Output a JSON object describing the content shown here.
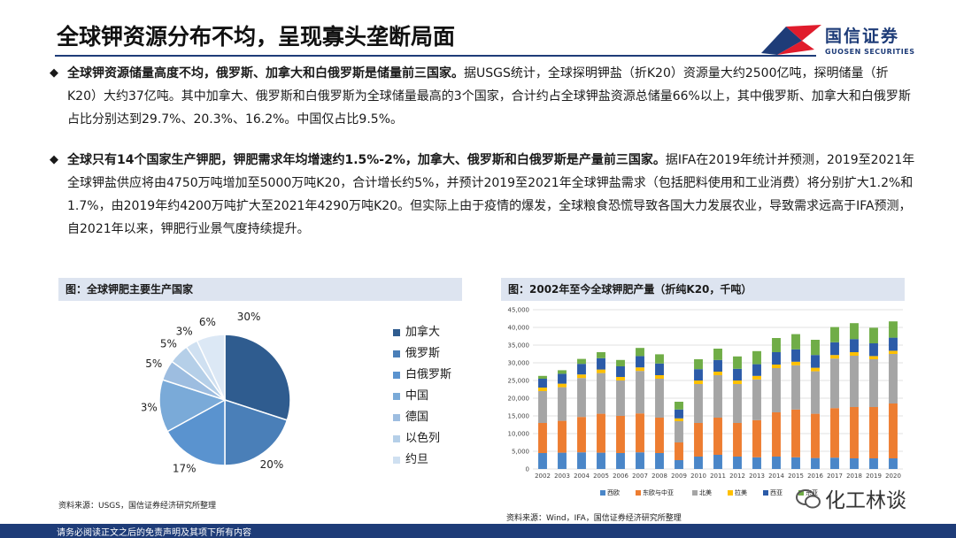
{
  "header": {
    "title": "全球钾资源分布不均，呈现寡头垄断局面",
    "logo_cn": "国信证券",
    "logo_en": "GUOSEN SECURITIES"
  },
  "paragraphs": [
    {
      "bullet": "◆",
      "bold": "全球钾资源储量高度不均，俄罗斯、加拿大和白俄罗斯是储量前三国家。",
      "rest": "据USGS统计，全球探明钾盐（折K20）资源量大约2500亿吨，探明储量（折K20）大约37亿吨。其中加拿大、俄罗斯和白俄罗斯为全球储量最高的3个国家，合计约占全球钾盐资源总储量66%以上，其中俄罗斯、加拿大和白俄罗斯占比分别达到29.7%、20.3%、16.2%。中国仅占比9.5%。"
    },
    {
      "bullet": "◆",
      "bold": "全球只有14个国家生产钾肥，钾肥需求年均增速约1.5%-2%，加拿大、俄罗斯和白俄罗斯是产量前三国家。",
      "rest": "据IFA在2019年统计并预测，2019至2021年全球钾盐供应将由4750万吨增加至5000万吨K20，合计增长约5%，并预计2019至2021年全球钾盐需求（包括肥料使用和工业消费）将分别扩大1.2%和1.7%，由2019年约4200万吨扩大至2021年4290万吨K20。但实际上由于疫情的爆发，全球粮食恐慌导致各国大力发展农业，导致需求远高于IFA预测，自2021年以来，钾肥行业景气度持续提升。"
    }
  ],
  "pie_caption": "图：全球钾肥主要生产国家",
  "bar_caption": "图：2002年至今全球钾肥产量（折纯K20，千吨）",
  "pie_source": "资料来源：USGS，国信证券经济研究所整理",
  "bar_source": "资料来源：Wind，IFA，国信证券经济研究所整理",
  "footer": "请务必阅读正文之后的免责声明及其项下所有内容",
  "watermark": "化工林谈",
  "chart_data": [
    {
      "type": "pie",
      "title": "图：全球钾肥主要生产国家",
      "labels": [
        "加拿大",
        "俄罗斯",
        "白俄罗斯",
        "中国",
        "德国",
        "以色列",
        "约旦"
      ],
      "values": [
        30,
        20,
        17,
        13,
        5,
        5,
        3
      ],
      "value_labels": [
        "30%",
        "20%",
        "17%",
        "13%",
        "5%",
        "5%",
        "3%"
      ],
      "other_label": "6%",
      "colors": [
        "#2f5c8f",
        "#4a7fb8",
        "#5a93cf",
        "#7aaad8",
        "#9dbde0",
        "#b5cfe8",
        "#cfe0f1"
      ],
      "legend_position": "right"
    },
    {
      "type": "bar",
      "stacked": true,
      "title": "图：2002年至今全球钾肥产量（折纯K20，千吨）",
      "categories": [
        "2002",
        "2003",
        "2004",
        "2005",
        "2006",
        "2007",
        "2008",
        "2009",
        "2010",
        "2011",
        "2012",
        "2013",
        "2014",
        "2015",
        "2016",
        "2017",
        "2018",
        "2019",
        "2020"
      ],
      "series": [
        {
          "name": "西欧",
          "color": "#4a86c8",
          "values": [
            4500,
            4600,
            4700,
            4600,
            4500,
            4700,
            4500,
            2500,
            3500,
            4000,
            3500,
            3300,
            3500,
            3300,
            3100,
            3200,
            3000,
            3000,
            3000
          ]
        },
        {
          "name": "东欧与中亚",
          "color": "#ed7d31",
          "values": [
            8500,
            9000,
            10000,
            11000,
            10500,
            11000,
            10000,
            5000,
            9500,
            10500,
            9500,
            10500,
            12500,
            13500,
            12500,
            14000,
            14500,
            14500,
            15500
          ]
        },
        {
          "name": "北美",
          "color": "#a5a5a5",
          "values": [
            9000,
            9500,
            11000,
            11500,
            10000,
            12000,
            11000,
            6000,
            11000,
            12000,
            11000,
            11500,
            12500,
            12500,
            12000,
            14000,
            14500,
            13500,
            14000
          ]
        },
        {
          "name": "拉美",
          "color": "#ffc000",
          "values": [
            1000,
            1000,
            1000,
            1000,
            1000,
            1000,
            1000,
            800,
            1000,
            1000,
            1000,
            1000,
            1000,
            1000,
            1000,
            1000,
            1000,
            900,
            900
          ]
        },
        {
          "name": "西亚",
          "color": "#2c5ba8",
          "values": [
            2500,
            2800,
            3000,
            3200,
            3000,
            3200,
            3300,
            2500,
            3200,
            3300,
            3300,
            3300,
            3500,
            3500,
            3600,
            3600,
            3700,
            3600,
            3700
          ]
        },
        {
          "name": "东亚",
          "color": "#70ad47",
          "values": [
            800,
            1000,
            1400,
            1700,
            1800,
            2300,
            2600,
            2200,
            2800,
            3200,
            3500,
            3700,
            4000,
            4300,
            4300,
            4300,
            4500,
            4400,
            4600
          ]
        }
      ],
      "ylim": [
        0,
        45000
      ],
      "yticks": [
        "0",
        "5,000",
        "10,000",
        "15,000",
        "20,000",
        "25,000",
        "30,000",
        "35,000",
        "40,000",
        "45,000"
      ],
      "grid": true,
      "legend_position": "bottom"
    }
  ]
}
